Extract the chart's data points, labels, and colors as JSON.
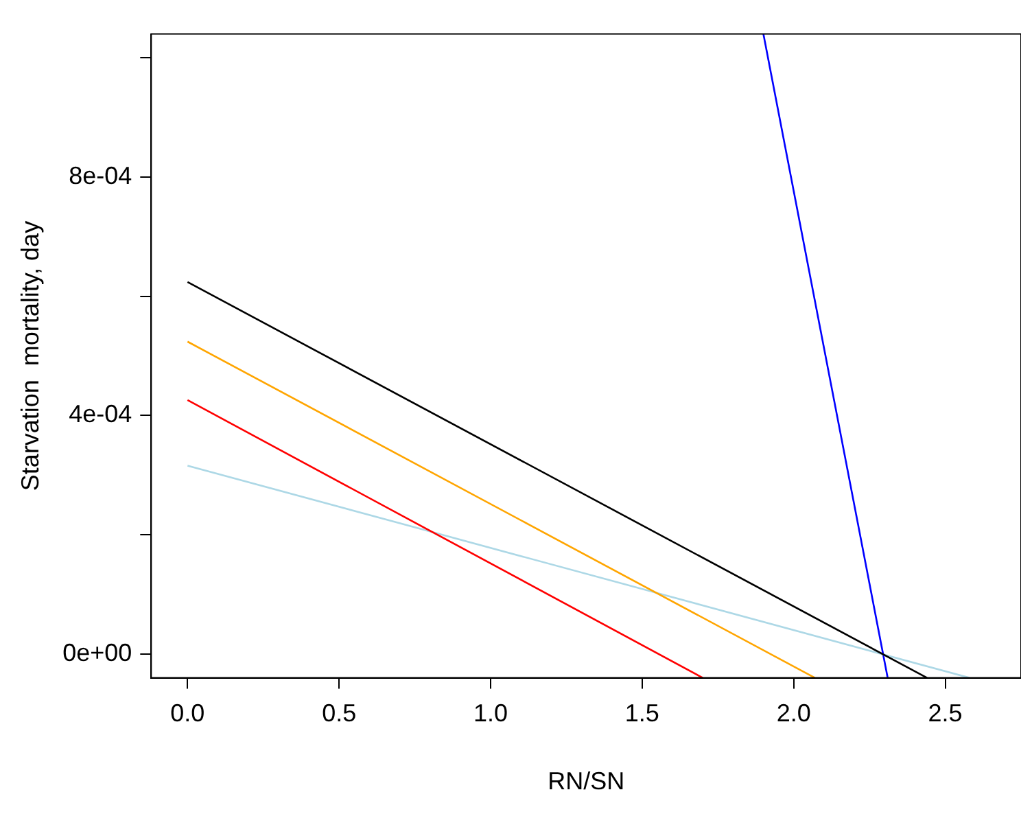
{
  "chart_data": {
    "type": "line",
    "xlabel": "RN/SN",
    "ylabel": "Starvation  mortality, day",
    "xlim": [
      -0.12,
      2.75
    ],
    "xticks": [
      {
        "value": 0,
        "label": "0.0"
      },
      {
        "value": 0.5,
        "label": "0.5"
      },
      {
        "value": 1,
        "label": "1.0"
      },
      {
        "value": 1.5,
        "label": "1.5"
      },
      {
        "value": 2,
        "label": "2.0"
      },
      {
        "value": 2.5,
        "label": "2.5"
      }
    ],
    "ylim": [
      -4e-05,
      0.00104
    ],
    "yticks": [
      {
        "value": 0,
        "label": "0e+00"
      },
      {
        "value": 0.0002,
        "label": null
      },
      {
        "value": 0.0004,
        "label": "4e-04"
      },
      {
        "value": 0.0006,
        "label": null
      },
      {
        "value": 0.0008,
        "label": "8e-04"
      },
      {
        "value": 0.001,
        "label": null
      }
    ],
    "grid": false,
    "legend": false,
    "marker": "none",
    "line_style": "solid",
    "series": [
      {
        "color": "#000000",
        "x": [
          0,
          2.44
        ],
        "values": [
          0.000624,
          -4e-05
        ]
      },
      {
        "color": "#ffa500",
        "x": [
          0,
          2.07
        ],
        "values": [
          0.000524,
          -4e-05
        ]
      },
      {
        "color": "#ff0000",
        "x": [
          0,
          1.7
        ],
        "values": [
          0.000426,
          -4e-05
        ]
      },
      {
        "color": "#add8e6",
        "x": [
          0,
          2.58
        ],
        "values": [
          0.000316,
          -4e-05
        ]
      },
      {
        "color": "#0000ff",
        "x": [
          1.9,
          2.31
        ],
        "values": [
          0.00104,
          -4e-05
        ]
      }
    ]
  }
}
